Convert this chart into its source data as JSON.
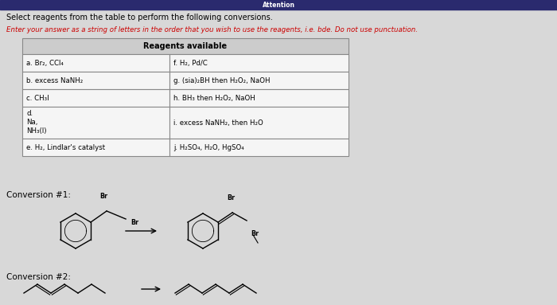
{
  "bg_color": "#d8d8d8",
  "title1": "Select reagents from the table to perform the following conversions.",
  "title2": "Enter your answer as a string of letters in the order that you wish to use the reagents, i.e. bde. Do not use punctuation.",
  "header": "Reagents available",
  "table_rows": [
    [
      "a. Br₂, CCl₄",
      "f. H₂, Pd/C"
    ],
    [
      "b. excess NaNH₂",
      "g. (sia)₂BH then H₂O₂, NaOH"
    ],
    [
      "c. CH₃I",
      "h. BH₃ then H₂O₂, NaOH"
    ],
    [
      "d.\nNa,\nNH₃(l)",
      "i. excess NaNH₂, then H₂O"
    ],
    [
      "e. H₂, Lindlar's catalyst",
      "j. H₂SO₄, H₂O, HgSO₄"
    ]
  ],
  "conv1_label": "Conversion #1:",
  "conv2_label": "Conversion #2:",
  "top_bar_color": "#2a2a6e",
  "red_color": "#cc0000",
  "black": "#000000",
  "table_border": "#888888",
  "header_bg": "#cccccc",
  "cell_bg": "#f5f5f5"
}
